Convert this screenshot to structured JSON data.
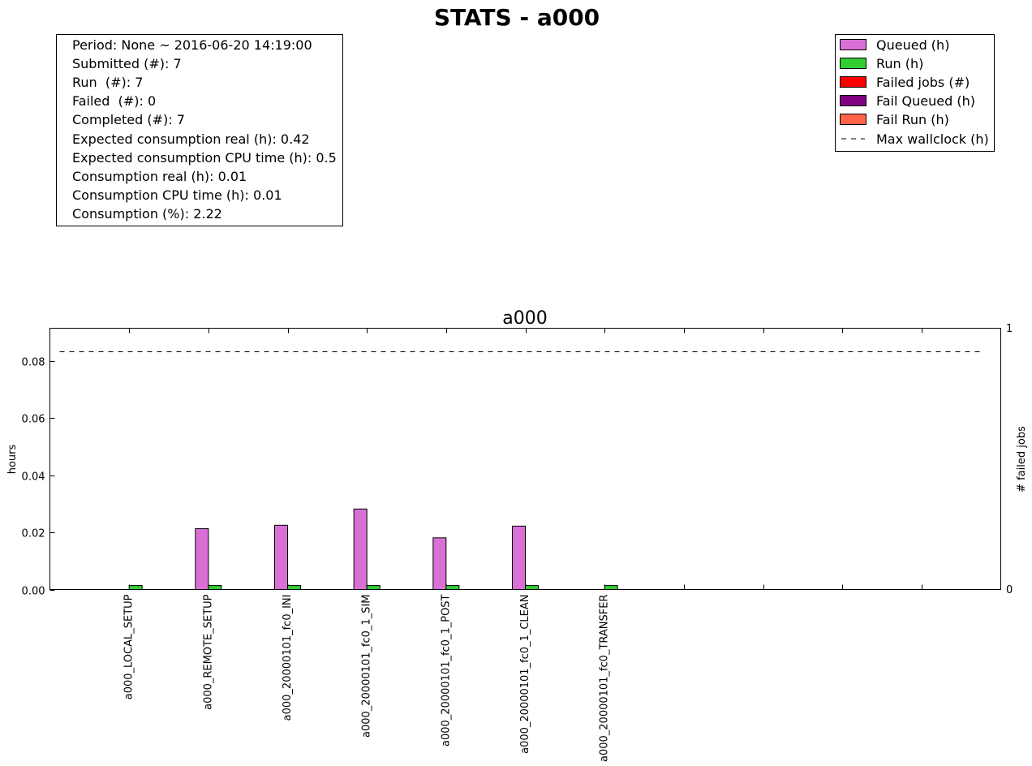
{
  "figure": {
    "title": "STATS - a000"
  },
  "stats_box": {
    "lines": [
      "Period: None ~ 2016-06-20 14:19:00",
      "Submitted (#): 7",
      "Run  (#): 7",
      "Failed  (#): 0",
      "Completed (#): 7",
      "Expected consumption real (h): 0.42",
      "Expected consumption CPU time (h): 0.5",
      "Consumption real (h): 0.01",
      "Consumption CPU time (h): 0.01",
      "Consumption (%): 2.22"
    ]
  },
  "legend": {
    "placement": "top-right",
    "items": [
      {
        "label": "Queued (h)",
        "kind": "patch",
        "color": "#da70d6"
      },
      {
        "label": "Run (h)",
        "kind": "patch",
        "color": "#32cd32"
      },
      {
        "label": "Failed jobs (#)",
        "kind": "patch",
        "color": "#ff0000"
      },
      {
        "label": "Fail Queued (h)",
        "kind": "patch",
        "color": "#800080"
      },
      {
        "label": "Fail Run (h)",
        "kind": "patch",
        "color": "#ff6347"
      },
      {
        "label": "Max wallclock (h)",
        "kind": "dashed-line",
        "color": "#000000"
      }
    ]
  },
  "chart_data": {
    "type": "bar",
    "title": "a000",
    "ylabel": "hours",
    "y2label": "# failed jobs",
    "ylim": [
      0,
      0.0915
    ],
    "yticks": [
      0.0,
      0.02,
      0.04,
      0.06,
      0.08
    ],
    "ytick_labels": [
      "0.00",
      "0.02",
      "0.04",
      "0.06",
      "0.08"
    ],
    "y2ticks": [
      "0",
      "1"
    ],
    "x_slots": 12,
    "categories": [
      "a000_LOCAL_SETUP",
      "a000_REMOTE_SETUP",
      "a000_20000101_fc0_INI",
      "a000_20000101_fc0_1_SIM",
      "a000_20000101_fc0_1_POST",
      "a000_20000101_fc0_1_CLEAN",
      "a000_20000101_fc0_TRANSFER"
    ],
    "series": [
      {
        "name": "Queued (h)",
        "color": "#da70d6",
        "values": [
          0.0,
          0.0213,
          0.0225,
          0.0282,
          0.0181,
          0.0222,
          0.0
        ]
      },
      {
        "name": "Run (h)",
        "color": "#32cd32",
        "values": [
          0.0014,
          0.0014,
          0.0014,
          0.0014,
          0.0014,
          0.0014,
          0.0014
        ]
      },
      {
        "name": "Failed jobs (#)",
        "color": "#ff0000",
        "values": [
          0,
          0,
          0,
          0,
          0,
          0,
          0
        ]
      },
      {
        "name": "Fail Queued (h)",
        "color": "#800080",
        "values": [
          0,
          0,
          0,
          0,
          0,
          0,
          0
        ]
      },
      {
        "name": "Fail Run (h)",
        "color": "#ff6347",
        "values": [
          0,
          0,
          0,
          0,
          0,
          0,
          0
        ]
      }
    ],
    "max_wallclock": 0.0833,
    "grid": false
  }
}
